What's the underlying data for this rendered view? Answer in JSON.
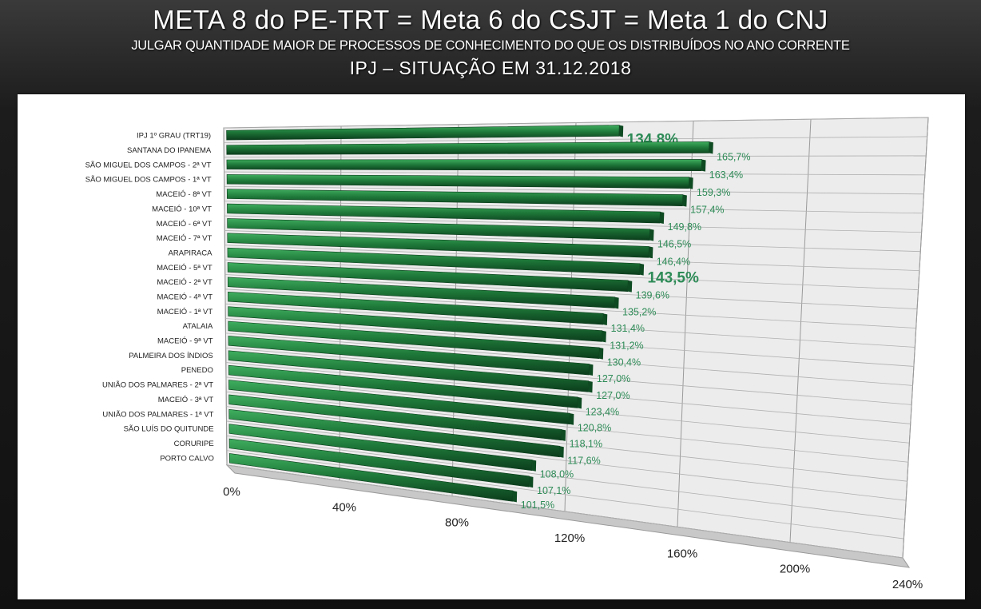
{
  "slide": {
    "title": "META 8 do PE-TRT = Meta 6 do CSJT = Meta 1 do CNJ",
    "subtitle": "JULGAR QUANTIDADE MAIOR DE PROCESSOS  DE CONHECIMENTO DO QUE OS DISTRIBUÍDOS NO ANO CORRENTE",
    "subtitle2": "IPJ – SITUAÇÃO EM 31.12.2018"
  },
  "chart_data": {
    "type": "bar",
    "orientation": "horizontal",
    "grid": true,
    "xlim": [
      0,
      240
    ],
    "x_ticks": [
      "0%",
      "40%",
      "80%",
      "120%",
      "160%",
      "200%",
      "240%"
    ],
    "colors": {
      "bar": "#1f7a3a",
      "label": "#2e8b57",
      "grid": "#9a9a9a",
      "plot_bg": "#ececec"
    },
    "categories": [
      "IPJ 1º GRAU (TRT19)",
      "SANTANA DO IPANEMA",
      "SÃO MIGUEL DOS CAMPOS - 2ª VT",
      "SÃO MIGUEL DOS CAMPOS - 1ª VT",
      "MACEIÓ - 8ª VT",
      "MACEIÓ - 10ª VT",
      "MACEIÓ - 6ª VT",
      "MACEIÓ - 7ª VT",
      "ARAPIRACA",
      "MACEIÓ - 5ª VT",
      "MACEIÓ - 2ª VT",
      "MACEIÓ - 4ª VT",
      "MACEIÓ - 1ª VT",
      "ATALAIA",
      "MACEIÓ - 9ª VT",
      "PALMEIRA DOS ÍNDIOS",
      "PENEDO",
      "UNIÃO DOS PALMARES - 2ª VT",
      "MACEIÓ - 3ª VT",
      "UNIÃO DOS PALMARES - 1ª VT",
      "SÃO LUÍS DO QUITUNDE",
      "CORURIPE",
      "PORTO CALVO"
    ],
    "values": [
      134.8,
      165.7,
      163.4,
      159.3,
      157.4,
      149.8,
      146.5,
      146.4,
      143.5,
      139.6,
      135.2,
      131.4,
      131.2,
      130.4,
      127.0,
      127.0,
      123.4,
      120.8,
      118.1,
      117.6,
      108.0,
      107.1,
      101.5
    ],
    "data_labels": [
      "134,8%",
      "165,7%",
      "163,4%",
      "159,3%",
      "157,4%",
      "149,8%",
      "146,5%",
      "146,4%",
      "143,5%",
      "139,6%",
      "135,2%",
      "131,4%",
      "131,2%",
      "130,4%",
      "127,0%",
      "127,0%",
      "123,4%",
      "120,8%",
      "118,1%",
      "117,6%",
      "108,0%",
      "107,1%",
      "101,5%"
    ],
    "highlighted_labels": [
      0,
      8
    ]
  }
}
